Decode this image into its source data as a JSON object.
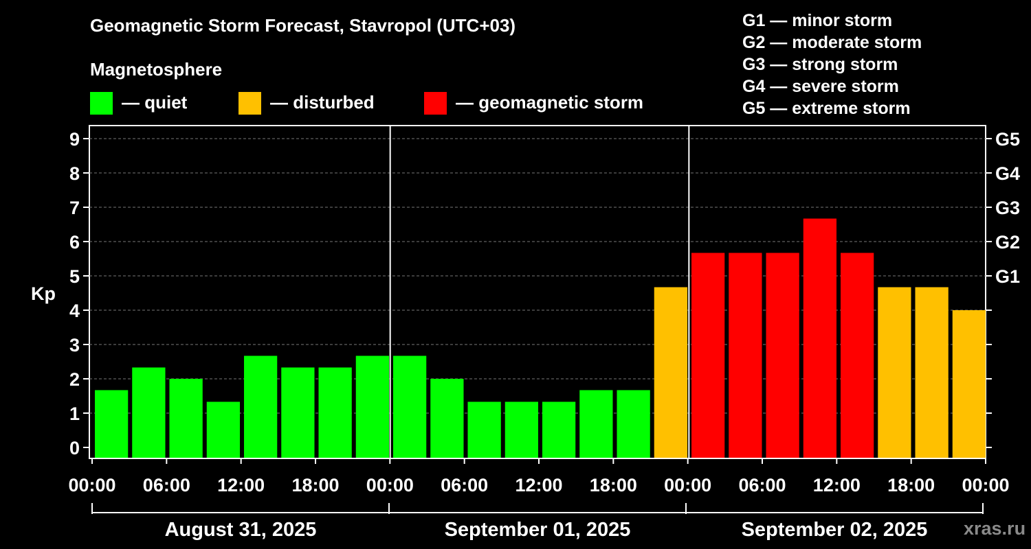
{
  "title": "Geomagnetic Storm Forecast, Stavropol (UTC+03)",
  "magnetosphere_label": "Magnetosphere",
  "legend": [
    {
      "label": "— quiet",
      "color": "#00ff00"
    },
    {
      "label": "— disturbed",
      "color": "#ffc000"
    },
    {
      "label": "— geomagnetic storm",
      "color": "#ff0000"
    }
  ],
  "storm_scale": [
    "G1 — minor storm",
    "G2 — moderate storm",
    "G3 — strong storm",
    "G4 — severe storm",
    "G5 — extreme storm"
  ],
  "watermark": "xras.ru",
  "chart_data": {
    "type": "bar",
    "title": "Geomagnetic Storm Forecast, Stavropol (UTC+03)",
    "ylabel": "Kp",
    "xlabel": "",
    "ylim": [
      0,
      9
    ],
    "yticks": [
      0,
      1,
      2,
      3,
      4,
      5,
      6,
      7,
      8,
      9
    ],
    "y2_ticks": [
      {
        "value": 5,
        "label": "G1"
      },
      {
        "value": 6,
        "label": "G2"
      },
      {
        "value": 7,
        "label": "G3"
      },
      {
        "value": 8,
        "label": "G4"
      },
      {
        "value": 9,
        "label": "G5"
      }
    ],
    "xtick_labels": [
      "00:00",
      "06:00",
      "12:00",
      "18:00",
      "00:00",
      "06:00",
      "12:00",
      "18:00",
      "00:00",
      "06:00",
      "12:00",
      "18:00",
      "00:00"
    ],
    "days": [
      "August 31, 2025",
      "September 01, 2025",
      "September 02, 2025"
    ],
    "interval_hours": 3,
    "values": [
      1.67,
      2.33,
      2.0,
      1.33,
      2.67,
      2.33,
      2.33,
      2.67,
      2.67,
      2.0,
      1.33,
      1.33,
      1.33,
      1.67,
      1.67,
      4.67,
      5.67,
      5.67,
      5.67,
      6.67,
      5.67,
      4.67,
      4.67,
      4.0
    ],
    "categories": [
      "quiet",
      "quiet",
      "quiet",
      "quiet",
      "quiet",
      "quiet",
      "quiet",
      "quiet",
      "quiet",
      "quiet",
      "quiet",
      "quiet",
      "quiet",
      "quiet",
      "quiet",
      "disturbed",
      "storm",
      "storm",
      "storm",
      "storm",
      "storm",
      "disturbed",
      "disturbed",
      "disturbed"
    ],
    "colors": {
      "quiet": "#00ff00",
      "disturbed": "#ffc000",
      "storm": "#ff0000"
    },
    "grid": true
  }
}
